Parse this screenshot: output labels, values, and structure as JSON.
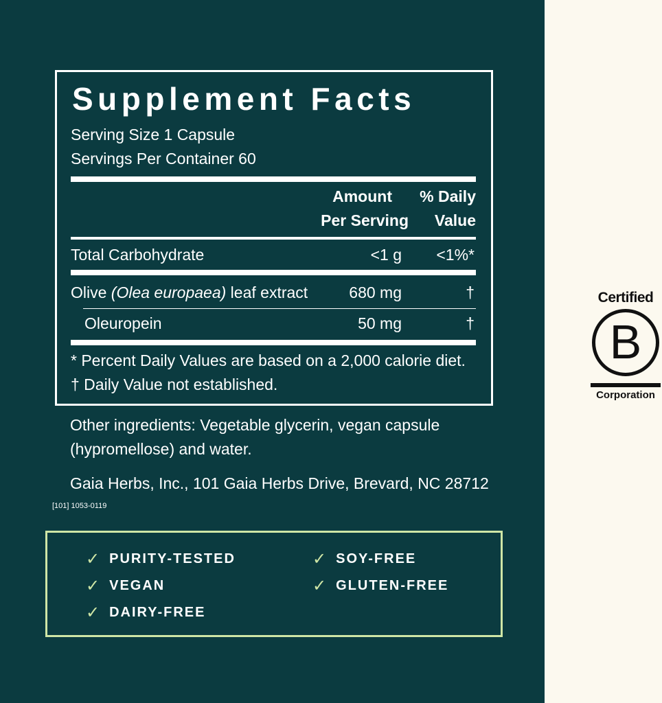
{
  "facts": {
    "title": "Supplement Facts",
    "serving_size": "Serving Size 1 Capsule",
    "servings_per_container": "Servings Per Container 60",
    "header": {
      "amount_line1": "Amount",
      "amount_line2": "Per Serving",
      "dv_line1": "% Daily",
      "dv_line2": "Value"
    },
    "rows": [
      {
        "name": "Total Carbohydrate",
        "amount": "<1 g",
        "dv": "<1%*"
      },
      {
        "name_pre": "Olive ",
        "name_italic": "(Olea europaea)",
        "name_post": " leaf extract",
        "amount": "680 mg",
        "dv": "†"
      },
      {
        "name": "Oleuropein",
        "amount": "50 mg",
        "dv": "†"
      }
    ],
    "footnote1": "* Percent Daily Values are based on a 2,000 calorie diet.",
    "footnote2": "† Daily Value not established."
  },
  "other_ingredients_line1": "Other ingredients: Vegetable glycerin, vegan capsule",
  "other_ingredients_line2": "(hypromellose) and water.",
  "address": "Gaia Herbs, Inc., 101 Gaia Herbs Drive, Brevard, NC 28712",
  "code": "[101] 1053-0119",
  "claims": [
    "PURITY-TESTED",
    "VEGAN",
    "DAIRY-FREE",
    "SOY-FREE",
    "GLUTEN-FREE"
  ],
  "logo": {
    "top": "Certified",
    "letter": "B",
    "bottom": "Corporation"
  },
  "colors": {
    "panel": "#0b3b40",
    "accent": "#cfe6a6",
    "background": "#fcf9ef"
  }
}
